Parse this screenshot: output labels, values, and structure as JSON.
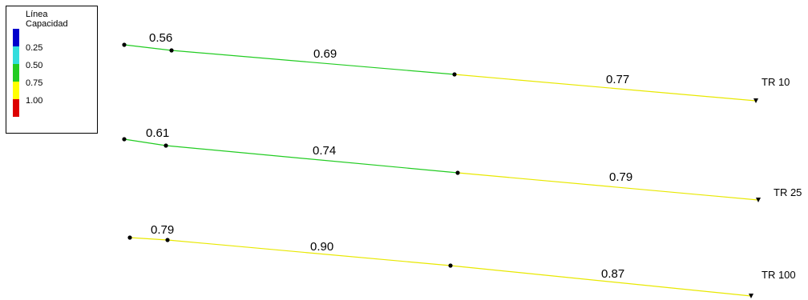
{
  "legend": {
    "title_line1": "Línea",
    "title_line2": "Capacidad",
    "swatches": [
      "#0000cc",
      "#33dddd",
      "#22cc22",
      "#ffff00",
      "#dd0000"
    ],
    "ticks": [
      "0.25",
      "0.50",
      "0.75",
      "1.00"
    ]
  },
  "colors": {
    "green": "#22cc22",
    "yellow": "#e8e800",
    "node": "#000000"
  },
  "routes": [
    {
      "name": "TR 10",
      "segments": [
        {
          "value": "0.56",
          "color": "green"
        },
        {
          "value": "0.69",
          "color": "green"
        },
        {
          "value": "0.77",
          "color": "yellow"
        }
      ]
    },
    {
      "name": "TR 25",
      "segments": [
        {
          "value": "0.61",
          "color": "green"
        },
        {
          "value": "0.74",
          "color": "green"
        },
        {
          "value": "0.79",
          "color": "yellow"
        }
      ]
    },
    {
      "name": "TR 100",
      "segments": [
        {
          "value": "0.79",
          "color": "yellow"
        },
        {
          "value": "0.90",
          "color": "yellow"
        },
        {
          "value": "0.87",
          "color": "yellow"
        }
      ]
    }
  ]
}
